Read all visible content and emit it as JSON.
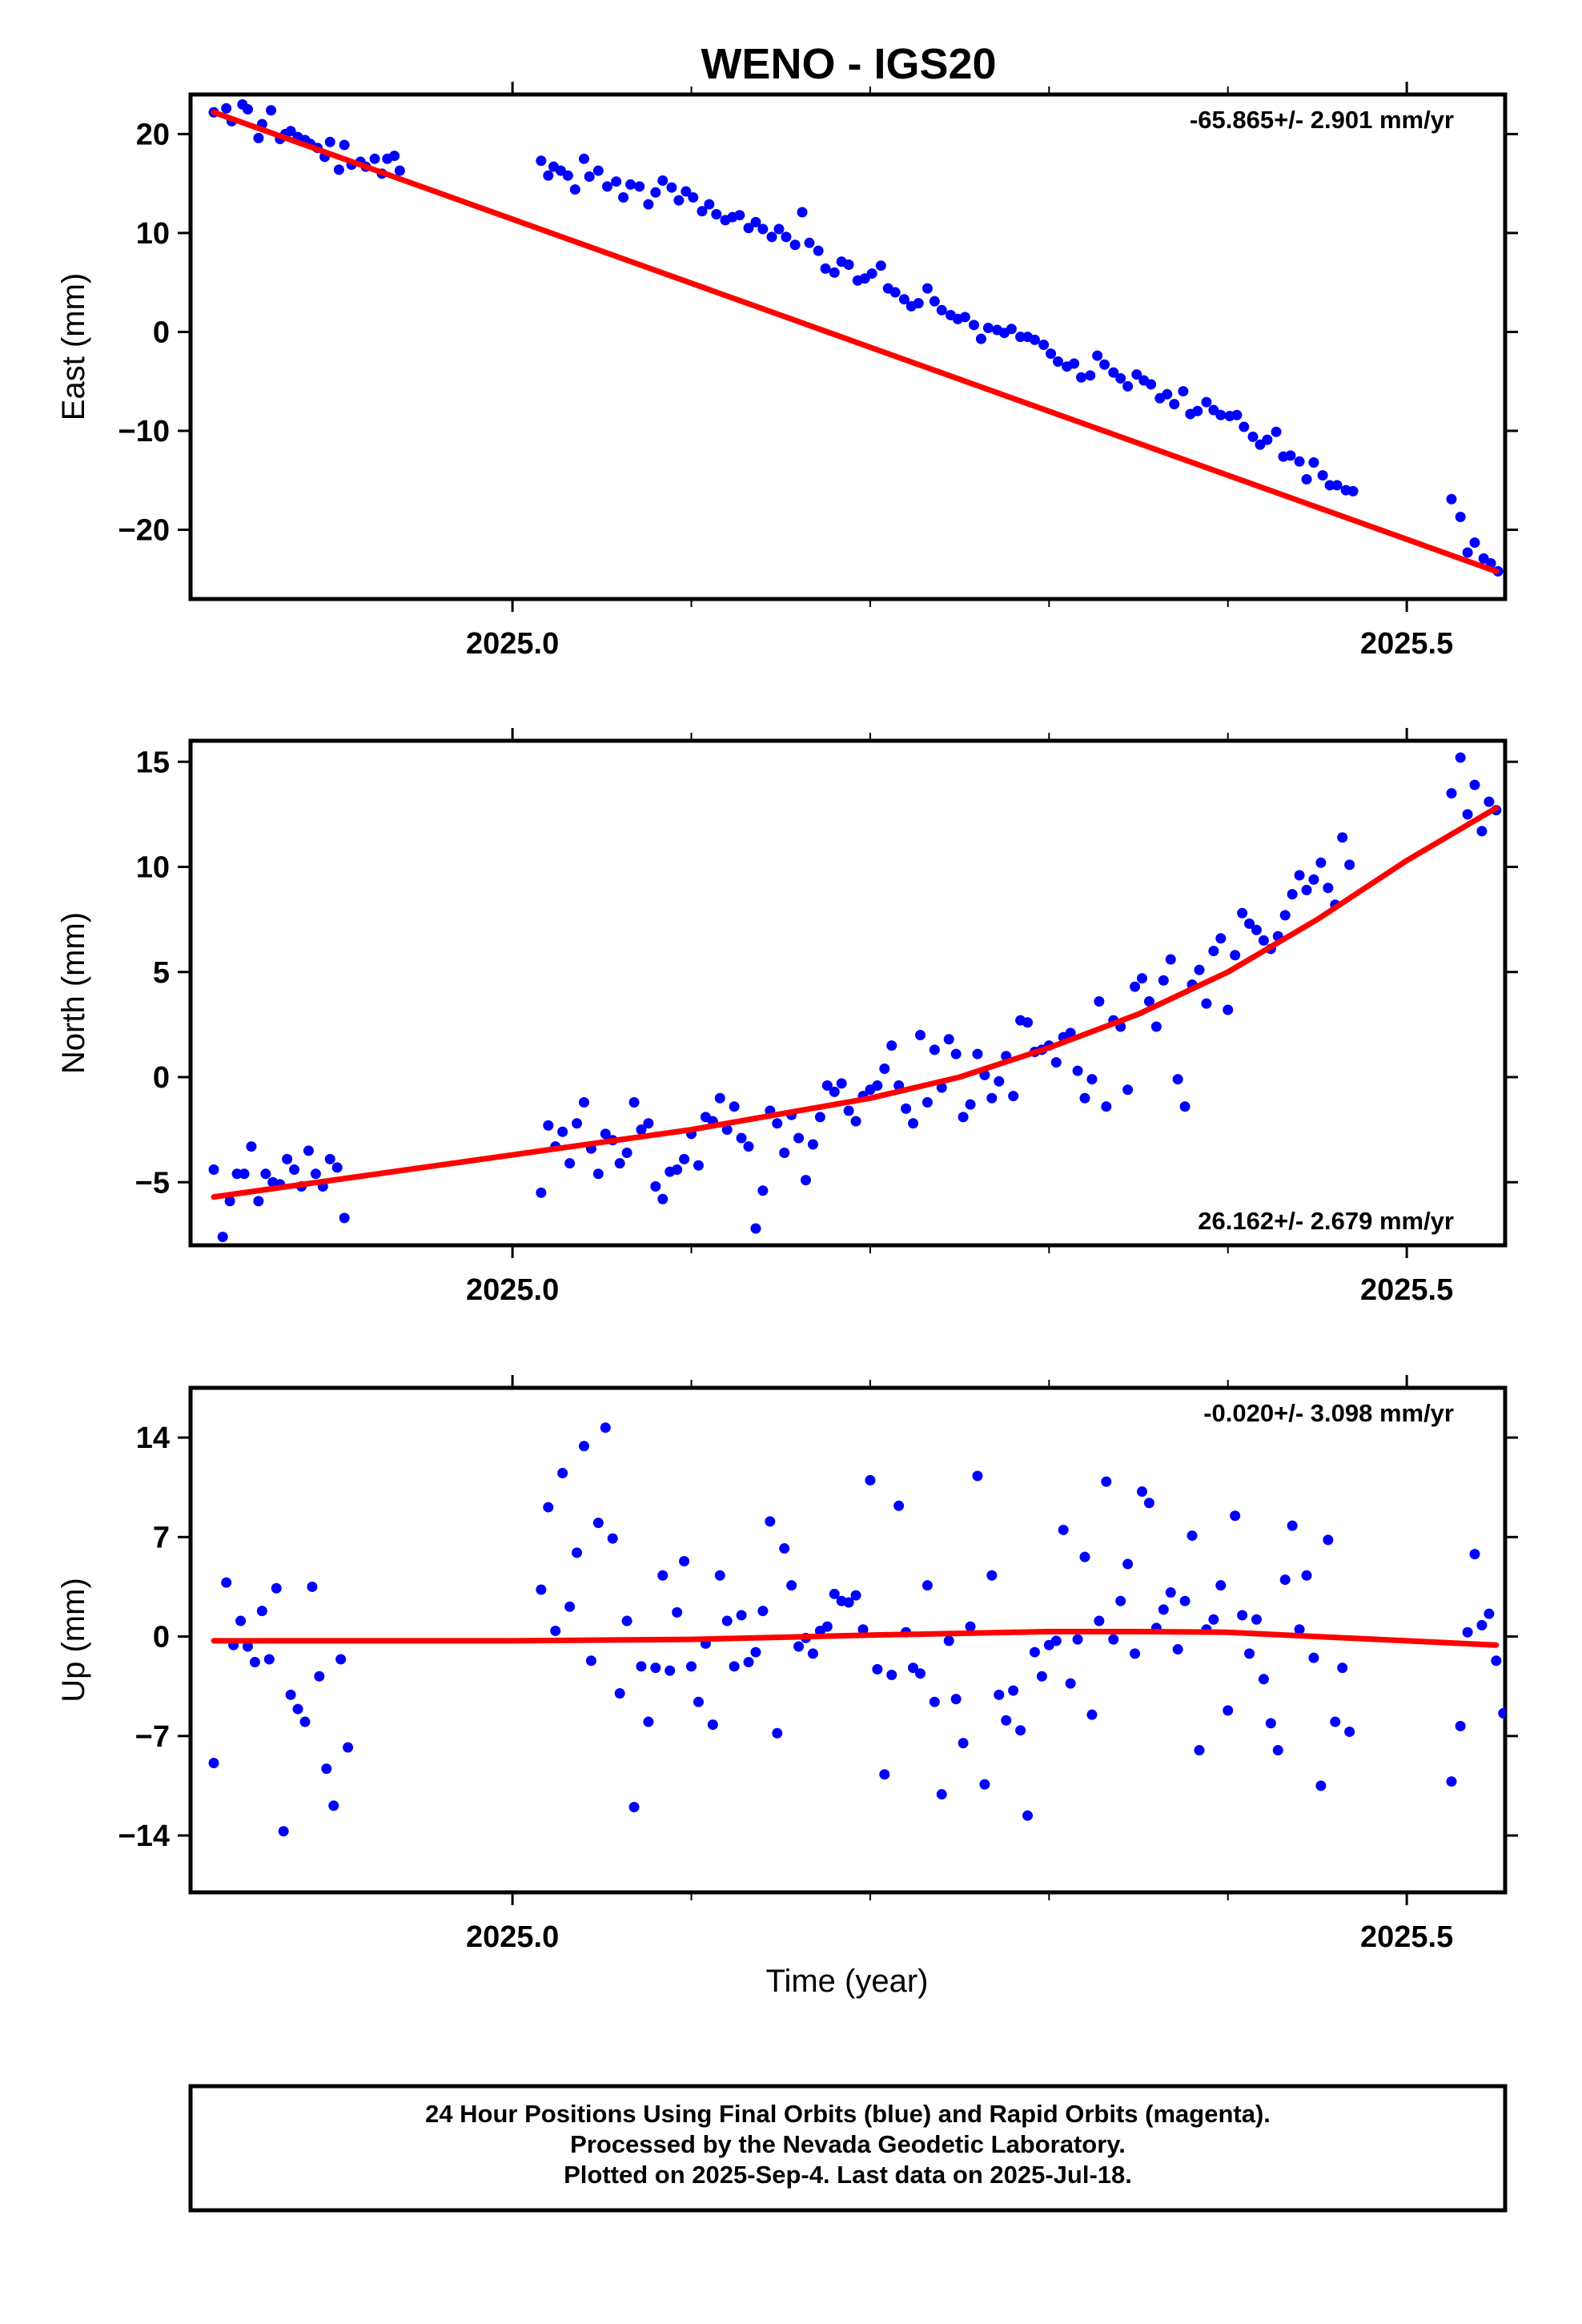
{
  "chart_title": "WENO - IGS20",
  "x_axis_label": "Time (year)",
  "footer": {
    "line1": "24 Hour Positions Using Final Orbits (blue) and Rapid Orbits (magenta).",
    "line2": "Processed by the Nevada Geodetic Laboratory.",
    "line3": "Plotted on 2025-Sep-4. Last data on 2025-Jul-18."
  },
  "colors": {
    "data_points": "#0000ff",
    "fit_line": "#ff0000",
    "frame": "#000000"
  },
  "chart_data": [
    {
      "type": "scatter",
      "ylabel": "East (mm)",
      "rate_label": "-65.865+/- 2.901 mm/yr",
      "rate_position": "top-right",
      "xlim": [
        2024.82,
        2025.555
      ],
      "ylim": [
        -27,
        24
      ],
      "x_ticks": [
        {
          "value": 2025.0,
          "label": "2025.0"
        },
        {
          "value": 2025.5,
          "label": "2025.5"
        }
      ],
      "x_minor_ticks": [
        2025.1,
        2025.2,
        2025.3,
        2025.4
      ],
      "y_ticks": [
        {
          "value": 20,
          "label": "20"
        },
        {
          "value": 10,
          "label": "10"
        },
        {
          "value": 0,
          "label": "0"
        },
        {
          "value": -10,
          "label": "-10"
        },
        {
          "value": -20,
          "label": "-20"
        }
      ],
      "fit": {
        "x": [
          2024.833,
          2025.55
        ],
        "y": [
          22.2,
          -24.2
        ]
      },
      "points_x": [
        2024.833,
        2024.84,
        2024.843,
        2024.849,
        2024.852,
        2024.858,
        2024.86,
        2024.865,
        2024.87,
        2024.873,
        2024.876,
        2024.88,
        2024.884,
        2024.887,
        2024.891,
        2024.895,
        2024.898,
        2024.903,
        2024.906,
        2024.91,
        2024.915,
        2024.918,
        2024.923,
        2024.927,
        2024.93,
        2024.934,
        2024.937,
        2025.016,
        2025.02,
        2025.023,
        2025.027,
        2025.031,
        2025.035,
        2025.04,
        2025.043,
        2025.048,
        2025.053,
        2025.058,
        2025.062,
        2025.066,
        2025.071,
        2025.076,
        2025.08,
        2025.084,
        2025.089,
        2025.093,
        2025.097,
        2025.101,
        2025.106,
        2025.11,
        2025.114,
        2025.119,
        2025.123,
        2025.127,
        2025.132,
        2025.136,
        2025.14,
        2025.145,
        2025.149,
        2025.153,
        2025.158,
        2025.162,
        2025.166,
        2025.171,
        2025.175,
        2025.18,
        2025.184,
        2025.188,
        2025.193,
        2025.197,
        2025.201,
        2025.206,
        2025.21,
        2025.214,
        2025.219,
        2025.223,
        2025.227,
        2025.232,
        2025.236,
        2025.24,
        2025.245,
        2025.249,
        2025.253,
        2025.258,
        2025.262,
        2025.266,
        2025.271,
        2025.275,
        2025.279,
        2025.284,
        2025.288,
        2025.292,
        2025.297,
        2025.301,
        2025.305,
        2025.31,
        2025.314,
        2025.318,
        2025.323,
        2025.327,
        2025.331,
        2025.336,
        2025.34,
        2025.344,
        2025.349,
        2025.353,
        2025.357,
        2025.362,
        2025.366,
        2025.37,
        2025.375,
        2025.379,
        2025.383,
        2025.388,
        2025.392,
        2025.396,
        2025.401,
        2025.405,
        2025.409,
        2025.414,
        2025.418,
        2025.422,
        2025.427,
        2025.431,
        2025.435,
        2025.44,
        2025.444,
        2025.448,
        2025.453,
        2025.457,
        2025.461,
        2025.466,
        2025.47,
        2025.525,
        2025.53,
        2025.534,
        2025.538,
        2025.543,
        2025.547,
        2025.551
      ],
      "points_y": [
        22.2,
        22.6,
        21.3,
        23.0,
        22.5,
        19.6,
        21.0,
        22.4,
        19.5,
        20.0,
        20.3,
        19.7,
        19.4,
        19.0,
        18.6,
        17.7,
        19.2,
        16.4,
        18.9,
        16.9,
        17.2,
        16.7,
        17.5,
        16.0,
        17.5,
        17.8,
        16.3,
        17.3,
        15.8,
        16.7,
        16.3,
        15.8,
        14.4,
        17.5,
        15.7,
        16.3,
        14.7,
        15.2,
        13.6,
        14.9,
        14.7,
        12.9,
        14.1,
        15.3,
        14.6,
        13.3,
        14.2,
        13.6,
        12.2,
        12.9,
        11.9,
        11.3,
        11.6,
        11.8,
        10.5,
        11.1,
        10.4,
        9.6,
        10.4,
        9.6,
        8.8,
        12.1,
        9.0,
        8.2,
        6.4,
        6.0,
        7.1,
        6.8,
        5.2,
        5.4,
        5.9,
        6.7,
        4.4,
        4.0,
        3.3,
        2.6,
        2.9,
        4.4,
        3.1,
        2.2,
        1.7,
        1.3,
        1.5,
        0.7,
        -0.7,
        0.4,
        0.2,
        -0.1,
        0.3,
        -0.5,
        -0.5,
        -0.8,
        -1.3,
        -2.2,
        -3.0,
        -3.5,
        -3.2,
        -4.6,
        -4.4,
        -2.4,
        -3.3,
        -4.1,
        -4.7,
        -5.5,
        -4.3,
        -4.9,
        -5.3,
        -6.7,
        -6.3,
        -7.3,
        -6.0,
        -8.3,
        -8.0,
        -7.1,
        -7.9,
        -8.4,
        -8.5,
        -8.4,
        -9.6,
        -10.6,
        -11.4,
        -10.9,
        -10.1,
        -12.6,
        -12.5,
        -13.1,
        -14.9,
        -13.2,
        -14.5,
        -15.5,
        -15.5,
        -16.0,
        -16.1,
        -16.9,
        -18.7,
        -22.3,
        -21.3,
        -22.9,
        -23.4,
        -24.2,
        -23.7,
        -25.4
      ]
    },
    {
      "type": "scatter",
      "ylabel": "North (mm)",
      "rate_label": "26.162+/- 2.679 mm/yr",
      "rate_position": "bottom-right",
      "xlim": [
        2024.82,
        2025.555
      ],
      "ylim": [
        -8,
        16
      ],
      "x_ticks": [
        {
          "value": 2025.0,
          "label": "2025.0"
        },
        {
          "value": 2025.5,
          "label": "2025.5"
        }
      ],
      "x_minor_ticks": [
        2025.1,
        2025.2,
        2025.3,
        2025.4
      ],
      "y_ticks": [
        {
          "value": 15,
          "label": "15"
        },
        {
          "value": 10,
          "label": "10"
        },
        {
          "value": 5,
          "label": "5"
        },
        {
          "value": 0,
          "label": "0"
        },
        {
          "value": -5,
          "label": "-5"
        }
      ],
      "fit": {
        "x": [
          2024.833,
          2025.0,
          2025.1,
          2025.2,
          2025.25,
          2025.3,
          2025.35,
          2025.4,
          2025.45,
          2025.5,
          2025.55
        ],
        "y": [
          -5.7,
          -3.7,
          -2.5,
          -1.0,
          0.0,
          1.4,
          3.0,
          5.0,
          7.5,
          10.3,
          12.8
        ]
      },
      "points_x": [
        2024.833,
        2024.838,
        2024.842,
        2024.846,
        2024.85,
        2024.854,
        2024.858,
        2024.862,
        2024.866,
        2024.87,
        2024.874,
        2024.878,
        2024.882,
        2024.886,
        2024.89,
        2024.894,
        2024.898,
        2024.902,
        2024.906,
        2025.016,
        2025.02,
        2025.024,
        2025.028,
        2025.032,
        2025.036,
        2025.04,
        2025.044,
        2025.048,
        2025.052,
        2025.056,
        2025.06,
        2025.064,
        2025.068,
        2025.072,
        2025.076,
        2025.08,
        2025.084,
        2025.088,
        2025.092,
        2025.096,
        2025.1,
        2025.104,
        2025.108,
        2025.112,
        2025.116,
        2025.12,
        2025.124,
        2025.128,
        2025.132,
        2025.136,
        2025.14,
        2025.144,
        2025.148,
        2025.152,
        2025.156,
        2025.16,
        2025.164,
        2025.168,
        2025.172,
        2025.176,
        2025.18,
        2025.184,
        2025.188,
        2025.192,
        2025.196,
        2025.2,
        2025.204,
        2025.208,
        2025.212,
        2025.216,
        2025.22,
        2025.224,
        2025.228,
        2025.232,
        2025.236,
        2025.24,
        2025.244,
        2025.248,
        2025.252,
        2025.256,
        2025.26,
        2025.264,
        2025.268,
        2025.272,
        2025.276,
        2025.28,
        2025.284,
        2025.288,
        2025.292,
        2025.296,
        2025.3,
        2025.304,
        2025.308,
        2025.312,
        2025.316,
        2025.32,
        2025.324,
        2025.328,
        2025.332,
        2025.336,
        2025.34,
        2025.344,
        2025.348,
        2025.352,
        2025.356,
        2025.36,
        2025.364,
        2025.368,
        2025.372,
        2025.376,
        2025.38,
        2025.384,
        2025.388,
        2025.392,
        2025.396,
        2025.4,
        2025.404,
        2025.408,
        2025.412,
        2025.416,
        2025.42,
        2025.424,
        2025.428,
        2025.432,
        2025.436,
        2025.44,
        2025.444,
        2025.448,
        2025.452,
        2025.456,
        2025.46,
        2025.464,
        2025.468,
        2025.525,
        2025.53,
        2025.534,
        2025.538,
        2025.542,
        2025.546,
        2025.55
      ],
      "points_y": [
        -4.4,
        -7.6,
        -5.9,
        -4.6,
        -4.6,
        -3.3,
        -5.9,
        -4.6,
        -5.0,
        -5.1,
        -3.9,
        -4.4,
        -5.2,
        -3.5,
        -4.6,
        -5.2,
        -3.9,
        -4.3,
        -6.7,
        -5.5,
        -2.3,
        -3.3,
        -2.6,
        -4.1,
        -2.2,
        -1.2,
        -3.4,
        -4.6,
        -2.7,
        -3.0,
        -4.1,
        -3.6,
        -1.2,
        -2.5,
        -2.2,
        -5.2,
        -5.8,
        -4.5,
        -4.4,
        -3.9,
        -2.7,
        -4.2,
        -1.9,
        -2.1,
        -1.0,
        -2.5,
        -1.4,
        -2.9,
        -3.3,
        -7.2,
        -5.4,
        -1.6,
        -2.2,
        -3.6,
        -1.8,
        -2.9,
        -4.9,
        -3.2,
        -1.9,
        -0.4,
        -0.7,
        -0.3,
        -1.6,
        -2.1,
        -0.9,
        -0.6,
        -0.4,
        0.4,
        1.5,
        -0.4,
        -1.5,
        -2.2,
        2.0,
        -1.2,
        1.3,
        -0.5,
        1.8,
        1.1,
        -1.9,
        -1.3,
        1.1,
        0.1,
        -1.0,
        -0.2,
        1.0,
        -0.9,
        2.7,
        2.6,
        1.2,
        1.3,
        1.5,
        0.7,
        1.9,
        2.1,
        0.3,
        -1.0,
        -0.1,
        3.6,
        -1.4,
        2.7,
        2.4,
        -0.6,
        4.3,
        4.7,
        3.6,
        2.4,
        4.6,
        5.6,
        -0.1,
        -1.4,
        4.4,
        5.1,
        3.5,
        6.0,
        6.6,
        3.2,
        5.8,
        7.8,
        7.3,
        7.0,
        6.5,
        6.1,
        6.7,
        7.7,
        8.7,
        9.6,
        8.9,
        9.4,
        10.2,
        9.0,
        8.2,
        11.4,
        10.1,
        13.5,
        15.2,
        12.5,
        13.9,
        11.7,
        13.1,
        12.7
      ]
    },
    {
      "type": "scatter",
      "ylabel": "Up (mm)",
      "rate_label": "-0.020+/- 3.098 mm/yr",
      "rate_position": "top-right",
      "xlim": [
        2024.82,
        2025.555
      ],
      "ylim": [
        -18,
        17.5
      ],
      "x_ticks": [
        {
          "value": 2025.0,
          "label": "2025.0"
        },
        {
          "value": 2025.5,
          "label": "2025.5"
        }
      ],
      "x_minor_ticks": [
        2025.1,
        2025.2,
        2025.3,
        2025.4
      ],
      "y_ticks": [
        {
          "value": 14,
          "label": "14"
        },
        {
          "value": 7,
          "label": "7"
        },
        {
          "value": 0,
          "label": "0"
        },
        {
          "value": -7,
          "label": "-7"
        },
        {
          "value": -14,
          "label": "-14"
        }
      ],
      "fit": {
        "x": [
          2024.833,
          2025.0,
          2025.1,
          2025.2,
          2025.3,
          2025.35,
          2025.4,
          2025.45,
          2025.5,
          2025.55
        ],
        "y": [
          -0.3,
          -0.3,
          -0.2,
          0.1,
          0.35,
          0.35,
          0.3,
          0.0,
          -0.3,
          -0.6
        ]
      },
      "points_x": [
        2024.833,
        2024.84,
        2024.844,
        2024.848,
        2024.852,
        2024.856,
        2024.86,
        2024.864,
        2024.868,
        2024.872,
        2024.876,
        2024.88,
        2024.884,
        2024.888,
        2024.892,
        2024.896,
        2024.9,
        2024.904,
        2024.908,
        2025.016,
        2025.02,
        2025.024,
        2025.028,
        2025.032,
        2025.036,
        2025.04,
        2025.044,
        2025.048,
        2025.052,
        2025.056,
        2025.06,
        2025.064,
        2025.068,
        2025.072,
        2025.076,
        2025.08,
        2025.084,
        2025.088,
        2025.092,
        2025.096,
        2025.1,
        2025.104,
        2025.108,
        2025.112,
        2025.116,
        2025.12,
        2025.124,
        2025.128,
        2025.132,
        2025.136,
        2025.14,
        2025.144,
        2025.148,
        2025.152,
        2025.156,
        2025.16,
        2025.164,
        2025.168,
        2025.172,
        2025.176,
        2025.18,
        2025.184,
        2025.188,
        2025.192,
        2025.196,
        2025.2,
        2025.204,
        2025.208,
        2025.212,
        2025.216,
        2025.22,
        2025.224,
        2025.228,
        2025.232,
        2025.236,
        2025.24,
        2025.244,
        2025.248,
        2025.252,
        2025.256,
        2025.26,
        2025.264,
        2025.268,
        2025.272,
        2025.276,
        2025.28,
        2025.284,
        2025.288,
        2025.292,
        2025.296,
        2025.3,
        2025.304,
        2025.308,
        2025.312,
        2025.316,
        2025.32,
        2025.324,
        2025.328,
        2025.332,
        2025.336,
        2025.34,
        2025.344,
        2025.348,
        2025.352,
        2025.356,
        2025.36,
        2025.364,
        2025.368,
        2025.372,
        2025.376,
        2025.38,
        2025.384,
        2025.388,
        2025.392,
        2025.396,
        2025.4,
        2025.404,
        2025.408,
        2025.412,
        2025.416,
        2025.42,
        2025.424,
        2025.428,
        2025.432,
        2025.436,
        2025.44,
        2025.444,
        2025.448,
        2025.452,
        2025.456,
        2025.46,
        2025.464,
        2025.468,
        2025.525,
        2025.53,
        2025.534,
        2025.538,
        2025.542,
        2025.546,
        2025.55,
        2025.554
      ],
      "points_y": [
        -8.9,
        3.8,
        -0.6,
        1.1,
        -0.7,
        -1.8,
        1.8,
        -1.6,
        3.4,
        -13.7,
        -4.1,
        -5.1,
        -6.0,
        3.5,
        -2.8,
        -9.3,
        -11.9,
        -1.6,
        -7.8,
        3.3,
        9.1,
        0.4,
        11.5,
        2.1,
        5.9,
        13.4,
        -1.7,
        8.0,
        14.7,
        6.9,
        -4.0,
        1.1,
        -12.0,
        -2.1,
        -6.0,
        -2.2,
        4.3,
        -2.4,
        1.7,
        5.3,
        -2.1,
        -4.6,
        -0.5,
        -6.2,
        4.3,
        1.1,
        -2.1,
        1.5,
        -1.8,
        -1.1,
        1.8,
        8.1,
        -6.8,
        6.2,
        3.6,
        -0.7,
        -0.1,
        -1.2,
        0.4,
        0.7,
        3.0,
        2.5,
        2.4,
        2.9,
        0.5,
        11.0,
        -2.3,
        -9.7,
        -2.7,
        9.2,
        0.3,
        -2.2,
        -2.6,
        3.6,
        -4.6,
        -11.1,
        -0.3,
        -4.4,
        -7.5,
        0.7,
        11.3,
        -10.4,
        4.3,
        -4.1,
        -5.9,
        -3.8,
        -6.6,
        -12.6,
        -1.1,
        -2.8,
        -0.6,
        -0.3,
        7.5,
        -3.3,
        -0.2,
        5.6,
        -5.5,
        1.1,
        10.9,
        -0.2,
        2.5,
        5.1,
        -1.2,
        10.2,
        9.4,
        0.6,
        1.9,
        3.1,
        -0.9,
        2.5,
        7.1,
        -8.0,
        0.5,
        1.2,
        3.6,
        -5.2,
        8.5,
        1.5,
        -1.2,
        1.2,
        -3.0,
        -6.1,
        -8.0,
        4.0,
        7.8,
        0.5,
        4.3,
        -1.5,
        -10.5,
        6.8,
        -6.0,
        -2.2,
        -6.7,
        -10.2,
        -6.3,
        0.3,
        5.8,
        0.8,
        1.6,
        -1.7,
        -5.4,
        -3.6
      ]
    }
  ]
}
